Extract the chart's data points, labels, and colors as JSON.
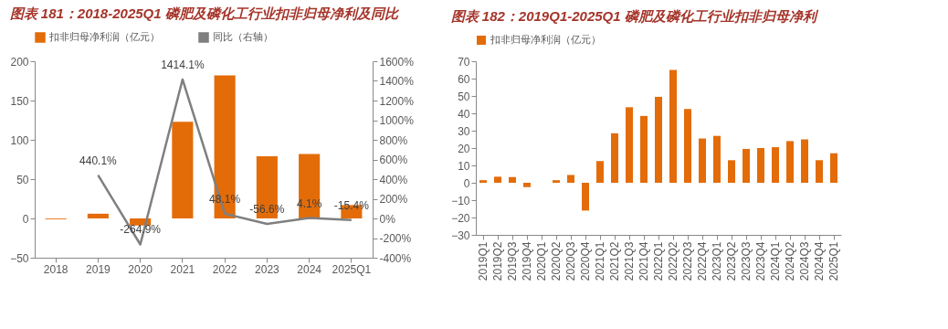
{
  "chart_data": [
    {
      "type": "bar",
      "title": "图表 181：2018-2025Q1 磷肥及磷化工行业扣非归母净利及同比",
      "legend": "top",
      "categories": [
        "2018",
        "2019",
        "2020",
        "2021",
        "2022",
        "2023",
        "2024",
        "2025Q1"
      ],
      "series": [
        {
          "name": "扣非归母净利润（亿元）",
          "type": "bar",
          "color": "#e36c09",
          "values": [
            -1,
            6,
            -9,
            123,
            182,
            79,
            82,
            17
          ]
        },
        {
          "name": "同比（右轴）",
          "type": "line",
          "axis": "y2",
          "color": "#7f7f7f",
          "values": [
            null,
            440.1,
            -264.9,
            1414.1,
            48.1,
            -56.6,
            4.1,
            -15.4
          ],
          "value_labels": [
            null,
            "440.1%",
            "-264.9%",
            "1414.1%",
            "48.1%",
            "-56.6%",
            "4.1%",
            "-15.4%"
          ]
        }
      ],
      "ylim": [
        -50,
        200
      ],
      "yticks": [
        -50,
        0,
        50,
        100,
        150,
        200
      ],
      "y2lim": [
        -400,
        1600
      ],
      "y2ticks": [
        {
          "value": -400,
          "label": "-400%"
        },
        {
          "value": -200,
          "label": "-200%"
        },
        {
          "value": 0,
          "label": "0%"
        },
        {
          "value": 200,
          "label": "200%"
        },
        {
          "value": 400,
          "label": "400%"
        },
        {
          "value": 600,
          "label": "600%"
        },
        {
          "value": 800,
          "label": "800%"
        },
        {
          "value": 1000,
          "label": "1000%"
        },
        {
          "value": 1200,
          "label": "1200%"
        },
        {
          "value": 1400,
          "label": "1400%"
        },
        {
          "value": 1600,
          "label": "1600%"
        }
      ]
    },
    {
      "type": "bar",
      "title": "图表 182：2019Q1-2025Q1 磷肥及磷化工行业扣非归母净利",
      "legend": "top",
      "categories": [
        "2019Q1",
        "2019Q2",
        "2019Q3",
        "2019Q4",
        "2020Q1",
        "2020Q2",
        "2020Q3",
        "2020Q4",
        "2021Q1",
        "2021Q2",
        "2021Q3",
        "2021Q4",
        "2022Q1",
        "2022Q2",
        "2022Q3",
        "2022Q4",
        "2023Q1",
        "2023Q2",
        "2023Q3",
        "2023Q4",
        "2024Q1",
        "2024Q2",
        "2024Q3",
        "2024Q4",
        "2025Q1"
      ],
      "series": [
        {
          "name": "扣非归母净利润（亿元）",
          "type": "bar",
          "color": "#e36c09",
          "values": [
            1.5,
            3.5,
            3.3,
            -2.5,
            0,
            1.5,
            4.5,
            -16,
            12.5,
            28.5,
            43.5,
            38.5,
            49.5,
            65,
            42.5,
            25.5,
            27,
            13,
            19.5,
            20,
            20.5,
            24,
            25,
            13,
            17
          ]
        }
      ],
      "ylim": [
        -30,
        70
      ],
      "yticks": [
        -30,
        -20,
        -10,
        0,
        10,
        20,
        30,
        40,
        50,
        60,
        70
      ]
    }
  ]
}
